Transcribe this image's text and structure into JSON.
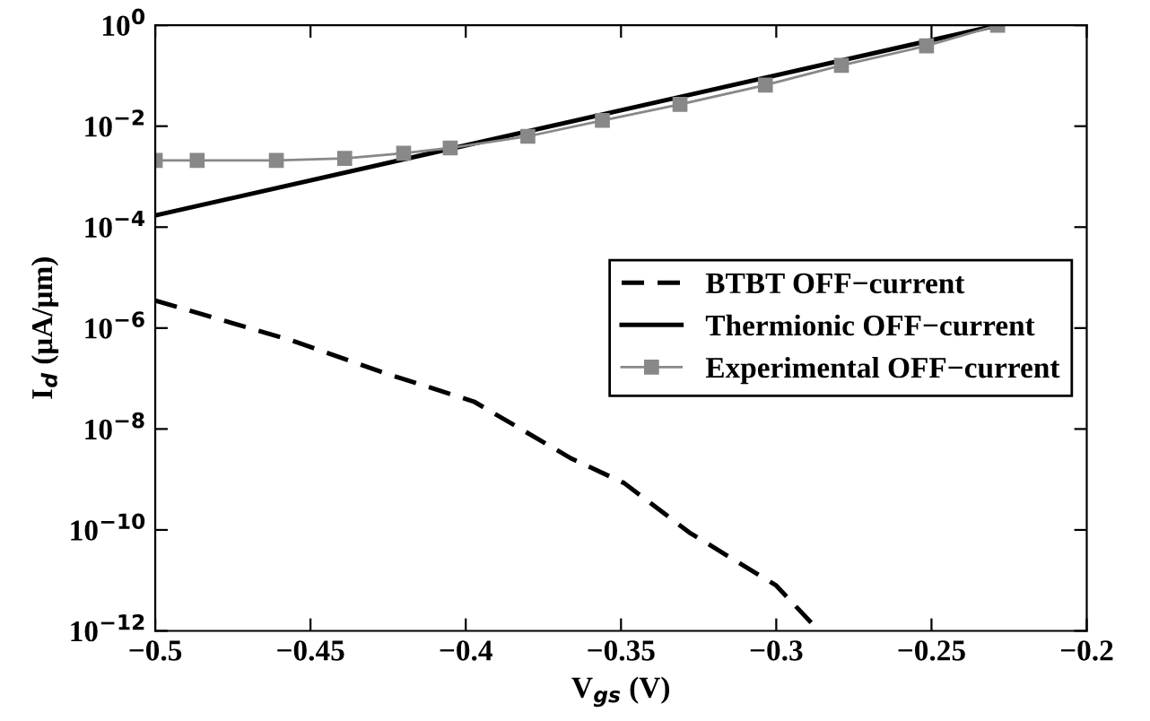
{
  "chart_data": {
    "type": "line",
    "xlabel": "V$_{gs}$ (V)",
    "ylabel": "I$_{d}$ (μA/μm)",
    "log": "y",
    "grid": false,
    "legend": "right",
    "xlim": [
      -0.5,
      -0.2
    ],
    "ylim": [
      1e-12,
      1
    ],
    "xticks": [
      {
        "value": -0.5,
        "label": "−0.5"
      },
      {
        "value": -0.45,
        "label": "−0.45"
      },
      {
        "value": -0.4,
        "label": "−0.4"
      },
      {
        "value": -0.35,
        "label": "−0.35"
      },
      {
        "value": -0.3,
        "label": "−0.3"
      },
      {
        "value": -0.25,
        "label": "−0.25"
      },
      {
        "value": -0.2,
        "label": "−0.2"
      }
    ],
    "yticks": [
      {
        "value": 1e-12,
        "label": "10$^{−12}$"
      },
      {
        "value": 1e-10,
        "label": "10$^{−10}$"
      },
      {
        "value": 1e-08,
        "label": "10$^{−8}$"
      },
      {
        "value": 1e-06,
        "label": "10$^{−6}$"
      },
      {
        "value": 0.0001,
        "label": "10$^{−4}$"
      },
      {
        "value": 0.01,
        "label": "10$^{−2}$"
      },
      {
        "value": 1,
        "label": "10$^{0}$"
      }
    ],
    "series": [
      {
        "name": "BTBT OFF−current",
        "color": "#000000",
        "line_style": "dashed",
        "marker": "none",
        "x": [
          -0.5,
          -0.4565,
          -0.4264,
          -0.3974,
          -0.366,
          -0.349,
          -0.328,
          -0.3,
          -0.288
        ],
        "values": [
          3.5e-06,
          5.8e-07,
          1.3e-07,
          3.5e-08,
          2.6e-09,
          8.5e-10,
          8.9e-11,
          7.9e-12,
          1.3e-12
        ]
      },
      {
        "name": "Thermionic OFF−current",
        "color": "#000000",
        "line_style": "solid",
        "marker": "none",
        "x": [
          -0.5,
          -0.2287
        ],
        "values": [
          0.00017,
          1.0
        ]
      },
      {
        "name": "Experimental OFF−current",
        "color": "#888888",
        "line_style": "solid",
        "marker": "square",
        "x": [
          -0.5,
          -0.4865,
          -0.461,
          -0.439,
          -0.42,
          -0.405,
          -0.38,
          -0.356,
          -0.331,
          -0.3035,
          -0.279,
          -0.2516,
          -0.2287
        ],
        "values": [
          0.0021,
          0.0021,
          0.0021,
          0.0023,
          0.0029,
          0.0037,
          0.0063,
          0.013,
          0.027,
          0.065,
          0.16,
          0.39,
          1.0
        ]
      }
    ]
  }
}
